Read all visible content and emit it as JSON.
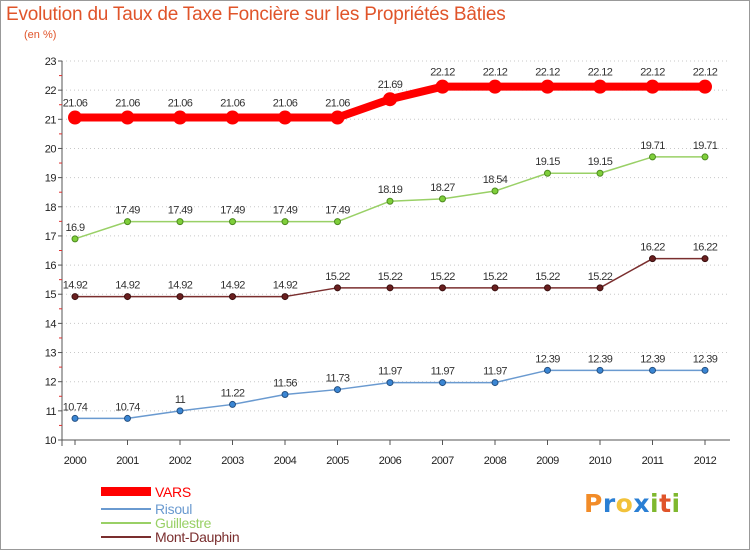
{
  "title": "Evolution du Taux de Taxe Foncière sur les Propriétés Bâties",
  "subtitle": "(en %)",
  "logo": {
    "letters": [
      "P",
      "r",
      "o",
      "x",
      "i",
      "t",
      "i"
    ],
    "colors": [
      "#f28c28",
      "#2a7fd4",
      "#f2c23a",
      "#2a7fd4",
      "#7fb82e",
      "#e0542a",
      "#7fb82e"
    ]
  },
  "chart_data": {
    "type": "line",
    "title": "Evolution du Taux de Taxe Foncière sur les Propriétés Bâties",
    "ylabel": "(en %)",
    "xlabel": "",
    "x": [
      "2000",
      "2001",
      "2002",
      "2003",
      "2004",
      "2005",
      "2006",
      "2007",
      "2008",
      "2009",
      "2010",
      "2011",
      "2012"
    ],
    "ylim": [
      10,
      23
    ],
    "yticks": [
      "10",
      "11",
      "12",
      "13",
      "14",
      "15",
      "16",
      "17",
      "18",
      "19",
      "20",
      "21",
      "22",
      "23"
    ],
    "legend_position": "bottom-left",
    "series": [
      {
        "name": "VARS",
        "color": "#ff0000",
        "values": [
          21.06,
          21.06,
          21.06,
          21.06,
          21.06,
          21.06,
          21.69,
          22.12,
          22.12,
          22.12,
          22.12,
          22.12,
          22.12
        ],
        "labels": [
          "21.06",
          "21.06",
          "21.06",
          "21.06",
          "21.06",
          "21.06",
          "21.69",
          "22.12",
          "22.12",
          "22.12",
          "22.12",
          "22.12",
          "22.12"
        ]
      },
      {
        "name": "Risoul",
        "color": "#6a9ad0",
        "values": [
          10.74,
          10.74,
          11,
          11.22,
          11.56,
          11.73,
          11.97,
          11.97,
          11.97,
          12.39,
          12.39,
          12.39,
          12.39
        ],
        "labels": [
          "10.74",
          "10.74",
          "11",
          "11.22",
          "11.56",
          "11.73",
          "11.97",
          "11.97",
          "11.97",
          "12.39",
          "12.39",
          "12.39",
          "12.39"
        ]
      },
      {
        "name": "Guillestre",
        "color": "#99d066",
        "values": [
          16.9,
          17.49,
          17.49,
          17.49,
          17.49,
          17.49,
          18.19,
          18.27,
          18.54,
          19.15,
          19.15,
          19.71,
          19.71
        ],
        "labels": [
          "16.9",
          "17.49",
          "17.49",
          "17.49",
          "17.49",
          "17.49",
          "18.19",
          "18.27",
          "18.54",
          "19.15",
          "19.15",
          "19.71",
          "19.71"
        ]
      },
      {
        "name": "Mont-Dauphin",
        "color": "#7a2e2e",
        "values": [
          14.92,
          14.92,
          14.92,
          14.92,
          14.92,
          15.22,
          15.22,
          15.22,
          15.22,
          15.22,
          15.22,
          16.22,
          16.22
        ],
        "labels": [
          "14.92",
          "14.92",
          "14.92",
          "14.92",
          "14.92",
          "15.22",
          "15.22",
          "15.22",
          "15.22",
          "15.22",
          "15.22",
          "16.22",
          "16.22"
        ]
      }
    ]
  }
}
